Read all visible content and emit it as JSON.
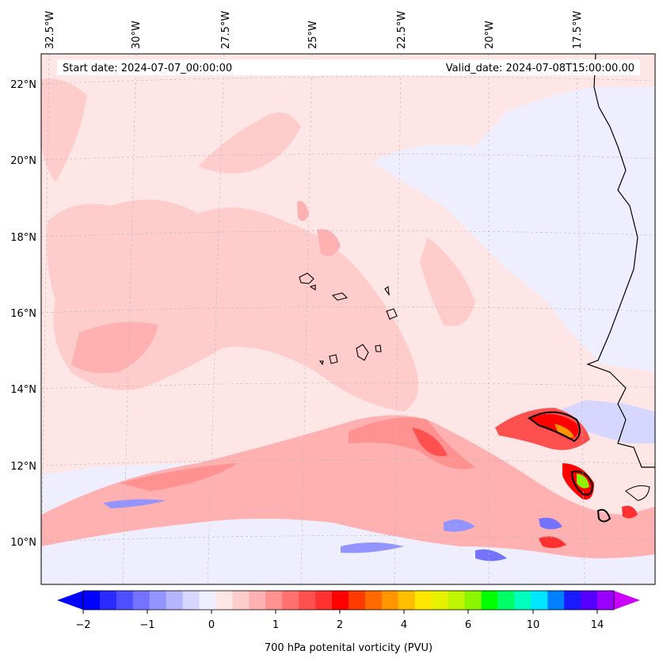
{
  "header": {
    "start_date": "Start date: 2024-07-07_00:00:00",
    "valid_date": "Valid_date: 2024-07-08T15:00:00.00"
  },
  "longitude_ticks": [
    "32.5°W",
    "30°W",
    "27.5°W",
    "25°W",
    "22.5°W",
    "20°W",
    "17.5°W"
  ],
  "latitude_ticks": [
    "22°N",
    "20°N",
    "18°N",
    "16°N",
    "14°N",
    "12°N",
    "10°N"
  ],
  "colorbar": {
    "label": "700 hPa potenital vorticity (PVU)",
    "tick_labels": [
      "−2",
      "−1",
      "0",
      "1",
      "2",
      "4",
      "6",
      "10",
      "14"
    ],
    "colors": [
      "#0000ff",
      "#2a2aff",
      "#4f4fff",
      "#7373ff",
      "#9494ff",
      "#b5b5ff",
      "#d6d6ff",
      "#eeeeff",
      "#ffe6e6",
      "#ffcccc",
      "#ffb0b0",
      "#ff9191",
      "#ff7070",
      "#ff5050",
      "#ff3030",
      "#ff0000",
      "#ff3a00",
      "#ff6a00",
      "#ff9600",
      "#ffbf00",
      "#ffe800",
      "#e6f200",
      "#bff500",
      "#8cf500",
      "#00ff00",
      "#00ff66",
      "#00ffbf",
      "#00e6ff",
      "#0080ff",
      "#1a1aff",
      "#5500ff",
      "#9900ff"
    ],
    "extend_low_color": "#0000ff",
    "extend_high_color": "#cc00ff"
  },
  "legend_colors": {
    "background_field": "#ffe6e6",
    "weak_positive": "#ffcccc",
    "moderate_positive": "#ffb0b0",
    "negative_field": "#d6d6ff",
    "coastline": "#000000"
  }
}
